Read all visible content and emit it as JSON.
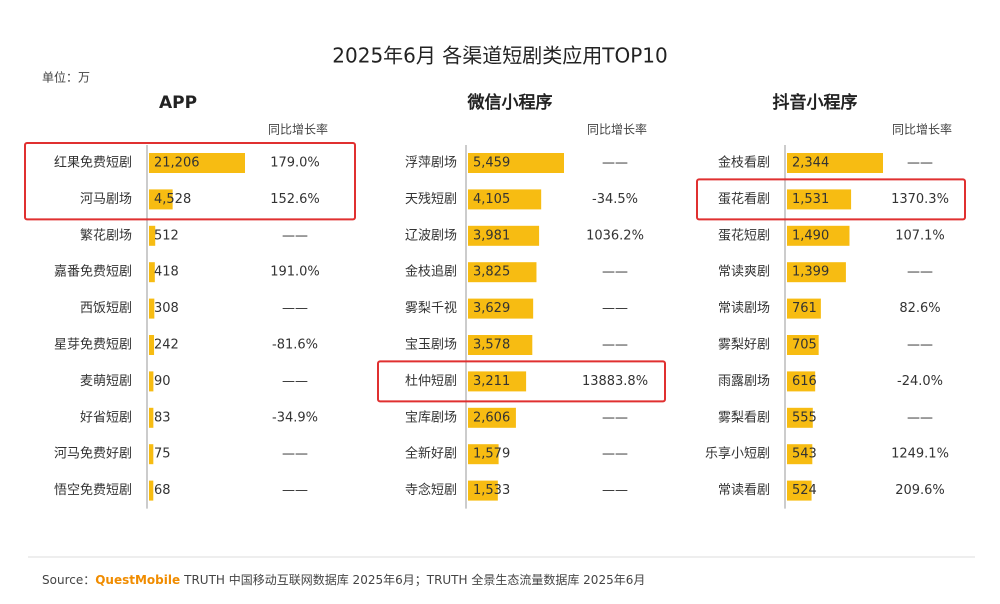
{
  "title": "2025年6月 各渠道短剧类应用TOP10",
  "unit": "单位：万",
  "source": {
    "label": "Source：",
    "brand": "QuestMobile",
    "text": "TRUTH 中国移动互联网数据库 2025年6月；TRUTH 全景生态流量数据库 2025年6月"
  },
  "chart_data": [
    {
      "type": "bar",
      "title": "APP",
      "color": "#f7bc12",
      "categories": [
        "红果免费短剧",
        "河马剧场",
        "繁花剧场",
        "嘉番免费短剧",
        "西饭短剧",
        "星芽免费短剧",
        "麦萌短剧",
        "好省短剧",
        "河马免费好剧",
        "悟空免费短剧"
      ],
      "values": [
        21206,
        4528,
        512,
        418,
        308,
        242,
        90,
        83,
        75,
        68
      ],
      "value_labels": [
        "21,206",
        "4,528",
        "512",
        "418",
        "308",
        "242",
        "90",
        "83",
        "75",
        "68"
      ],
      "growth_header": "同比增长率",
      "growth": [
        "179.0%",
        "152.6%",
        "——",
        "191.0%",
        "——",
        "-81.6%",
        "——",
        "-34.9%",
        "——",
        "——"
      ],
      "highlight_rows": [
        0,
        1
      ]
    },
    {
      "type": "bar",
      "title": "微信小程序",
      "color": "#f7bc12",
      "categories": [
        "浮萍剧场",
        "天残短剧",
        "辽波剧场",
        "金枝追剧",
        "雾梨千视",
        "宝玉剧场",
        "杜仲短剧",
        "宝库剧场",
        "全新好剧",
        "寺念短剧"
      ],
      "values": [
        5459,
        4105,
        3981,
        3825,
        3629,
        3578,
        3211,
        2606,
        1579,
        1533
      ],
      "value_labels": [
        "5,459",
        "4,105",
        "3,981",
        "3,825",
        "3,629",
        "3,578",
        "3,211",
        "2,606",
        "1,579",
        "1,533"
      ],
      "growth_header": "同比增长率",
      "growth": [
        "——",
        "-34.5%",
        "1036.2%",
        "——",
        "——",
        "——",
        "13883.8%",
        "——",
        "——",
        "——"
      ],
      "highlight_rows": [
        6
      ]
    },
    {
      "type": "bar",
      "title": "抖音小程序",
      "color": "#f7bc12",
      "categories": [
        "金枝看剧",
        "蛋花看剧",
        "蛋花短剧",
        "常读爽剧",
        "常读剧场",
        "雾梨好剧",
        "雨露剧场",
        "雾梨看剧",
        "乐享小短剧",
        "常读看剧"
      ],
      "values": [
        2344,
        1531,
        1490,
        1399,
        761,
        705,
        616,
        555,
        543,
        524
      ],
      "value_labels": [
        "2,344",
        "1,531",
        "1,490",
        "1,399",
        "761",
        "705",
        "616",
        "555",
        "543",
        "524"
      ],
      "growth_header": "同比增长率",
      "growth": [
        "——",
        "1370.3%",
        "107.1%",
        "——",
        "82.6%",
        "——",
        "-24.0%",
        "——",
        "1249.1%",
        "209.6%"
      ],
      "highlight_rows": [
        1
      ]
    }
  ]
}
